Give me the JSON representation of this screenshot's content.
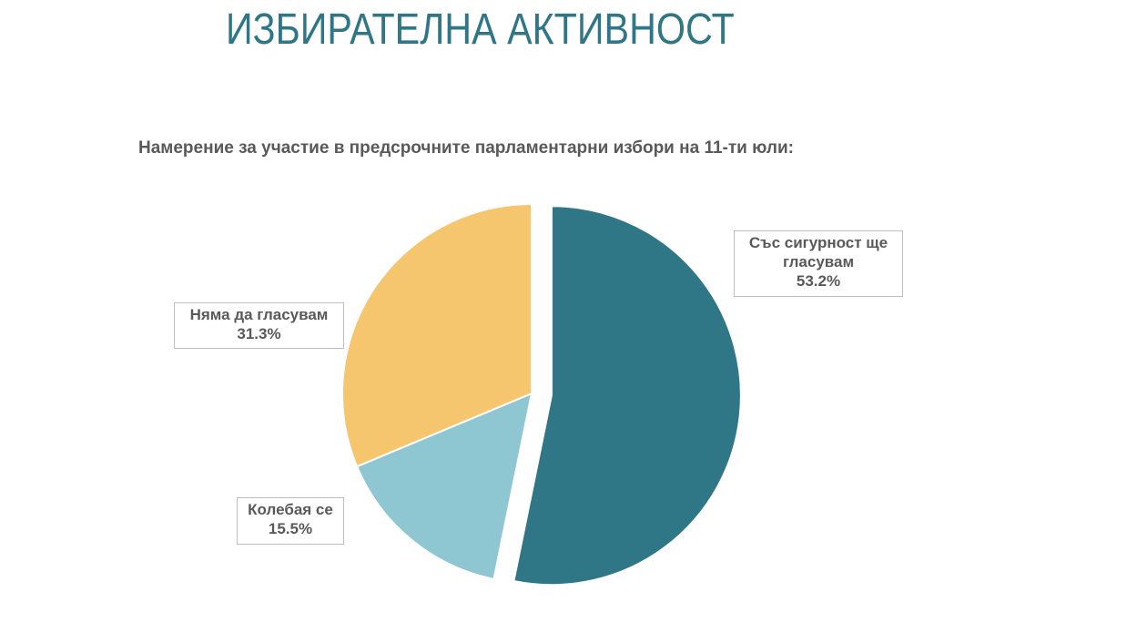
{
  "heading": "ИЗБИРАТЕЛНА АКТИВНОСТ",
  "chart_data": {
    "type": "pie",
    "title": "Намерение за участие в предсрочните парламентарни избори на 11-ти юли:",
    "categories": [
      "Със сигурност ще гласувам",
      "Колебая се",
      "Няма да гласувам"
    ],
    "values": [
      53.2,
      15.5,
      31.3
    ],
    "labels": [
      "53.2%",
      "15.5%",
      "31.3%"
    ],
    "colors": [
      "#2f7687",
      "#8ec7d2",
      "#f5c66e"
    ],
    "exploded": "Със сигурност ще гласувам",
    "legend": "none"
  }
}
